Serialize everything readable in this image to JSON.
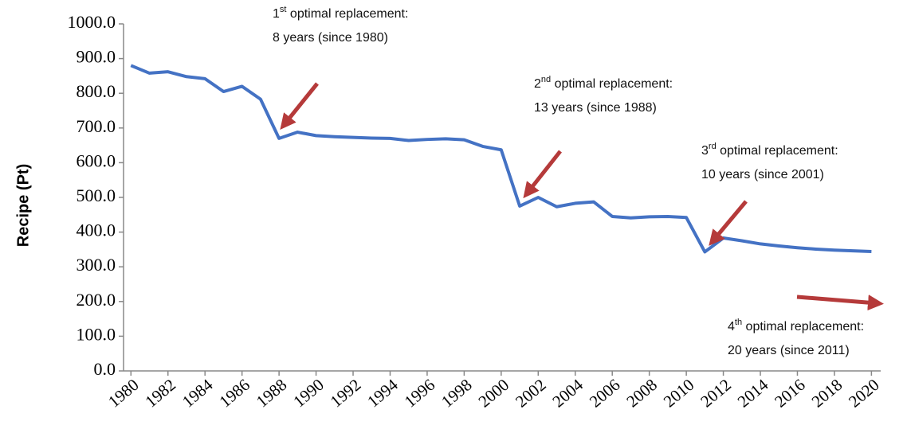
{
  "chart_data": {
    "type": "line",
    "y_label": "Recipe (Pt)",
    "x": [
      1980,
      1981,
      1982,
      1983,
      1984,
      1985,
      1986,
      1987,
      1988,
      1989,
      1990,
      1991,
      1992,
      1993,
      1994,
      1995,
      1996,
      1997,
      1998,
      1999,
      2000,
      2001,
      2002,
      2003,
      2004,
      2005,
      2006,
      2007,
      2008,
      2009,
      2010,
      2011,
      2012,
      2013,
      2014,
      2015,
      2016,
      2017,
      2018,
      2019,
      2020
    ],
    "values": [
      880,
      858,
      862,
      848,
      842,
      805,
      820,
      783,
      670,
      688,
      678,
      675,
      673,
      671,
      670,
      664,
      667,
      669,
      666,
      647,
      637,
      475,
      500,
      473,
      483,
      487,
      445,
      441,
      444,
      445,
      442,
      343,
      383,
      375,
      366,
      360,
      355,
      351,
      348,
      346,
      344
    ],
    "color": "#4472c4",
    "xlim": [
      1979.6,
      2020.5
    ],
    "xticks": [
      1980,
      1982,
      1984,
      1986,
      1988,
      1990,
      1992,
      1994,
      1996,
      1998,
      2000,
      2002,
      2004,
      2006,
      2008,
      2010,
      2012,
      2014,
      2016,
      2018,
      2020
    ],
    "ylim": [
      0,
      1000
    ],
    "yticks": [
      {
        "value": 0,
        "label": "0.0"
      },
      {
        "value": 100,
        "label": "100.0"
      },
      {
        "value": 200,
        "label": "200.0"
      },
      {
        "value": 300,
        "label": "300.0"
      },
      {
        "value": 400,
        "label": "400.0"
      },
      {
        "value": 500,
        "label": "500.0"
      },
      {
        "value": 600,
        "label": "600.0"
      },
      {
        "value": 700,
        "label": "700.0"
      },
      {
        "value": 800,
        "label": "800.0"
      },
      {
        "value": 900,
        "label": "900.0"
      },
      {
        "value": 1000,
        "label": "1000.0"
      }
    ],
    "grid": false,
    "annotations": [
      {
        "ordinal": "1",
        "suffix": "st",
        "text": " optimal replacement:",
        "detail": "8 years (since 1980)"
      },
      {
        "ordinal": "2",
        "suffix": "nd",
        "text": " optimal replacement:",
        "detail": "13 years (since 1988)"
      },
      {
        "ordinal": "3",
        "suffix": "rd",
        "text": " optimal replacement:",
        "detail": "10 years (since 2001)"
      },
      {
        "ordinal": "4",
        "suffix": "th",
        "text": " optimal replacement:",
        "detail": "20 years (since 2011)"
      }
    ]
  }
}
